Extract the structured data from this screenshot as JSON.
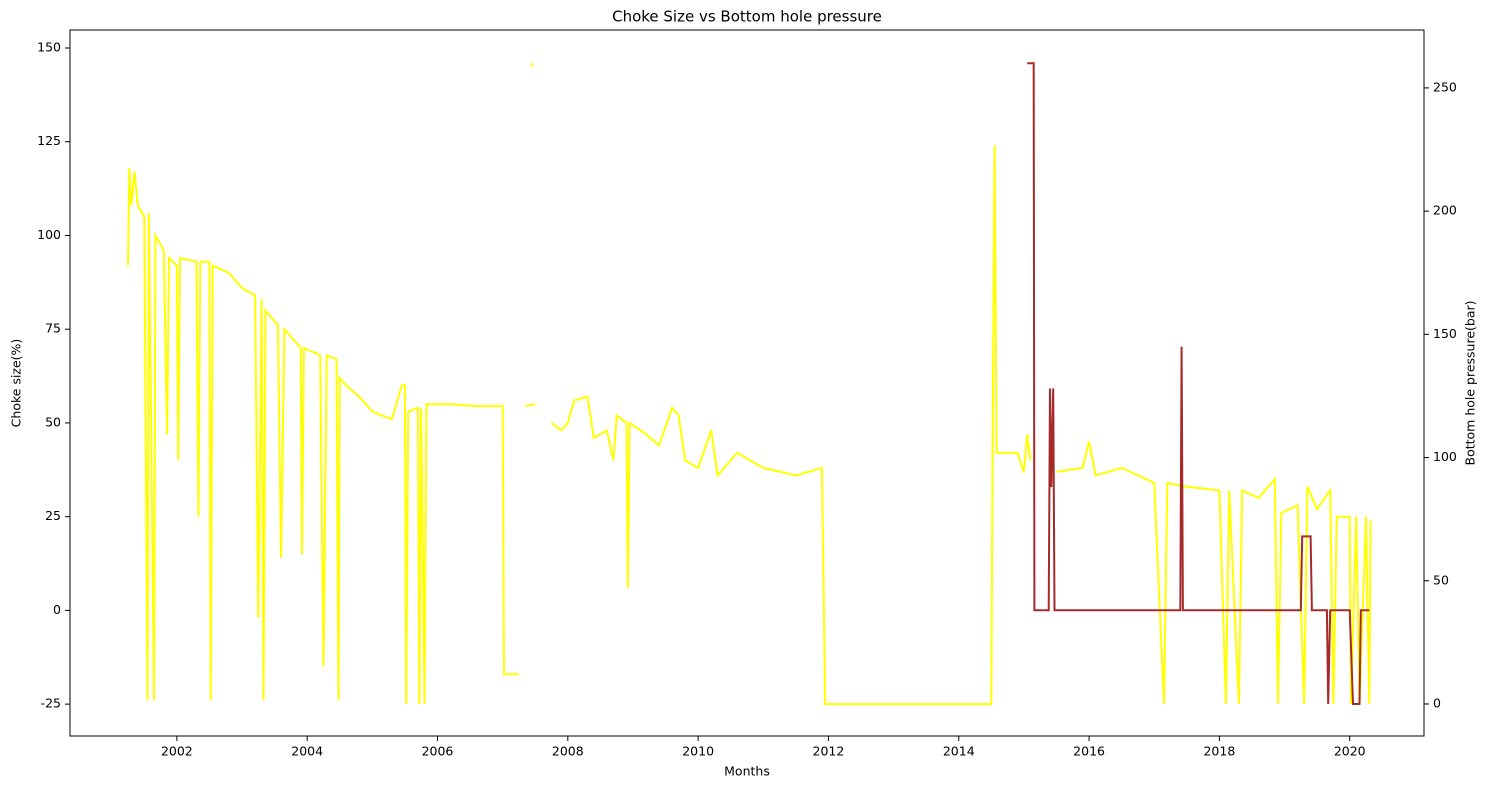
{
  "chart_data": {
    "type": "line",
    "title": "Choke Size vs Bottom hole pressure",
    "x_label": "Months",
    "y_label": "Choke size(%)",
    "y2_label": "Bottom hole pressure(bar)",
    "xlim": [
      2000.36,
      2021.14
    ],
    "xticks": [
      2002,
      2004,
      2006,
      2008,
      2010,
      2012,
      2014,
      2016,
      2018,
      2020
    ],
    "ylim": [
      -33.5,
      154.8
    ],
    "yticks": [
      -25,
      0,
      25,
      50,
      75,
      100,
      125,
      150
    ],
    "y2lim": [
      -13,
      273.5
    ],
    "y2ticks": [
      0,
      50,
      100,
      150,
      200,
      250
    ],
    "grid": false,
    "series": [
      {
        "color": "#ffff00",
        "x": [
          2001.25,
          2001.27,
          2001.3,
          2001.35,
          2001.4,
          2001.5,
          2001.55,
          2001.57,
          2001.65,
          2001.67,
          2001.8,
          2001.85,
          2001.88,
          2002.0,
          2002.02,
          2002.05,
          2002.3,
          2002.33,
          2002.36,
          2002.5,
          2002.52,
          2002.55,
          2002.8,
          2003.0,
          2003.2,
          2003.25,
          2003.3,
          2003.33,
          2003.36,
          2003.55,
          2003.6,
          2003.65,
          2003.9,
          2003.92,
          2003.95,
          2004.2,
          2004.25,
          2004.3,
          2004.45,
          2004.48,
          2004.5,
          2004.6,
          2004.8,
          2005.0,
          2005.3,
          2005.45,
          2005.5,
          2005.52,
          2005.55,
          2005.7,
          2005.72,
          2005.75,
          2005.8,
          2005.83,
          2005.9,
          2006.2,
          2006.6,
          2007.0,
          2007.02,
          2007.25,
          null,
          2007.35,
          2007.5,
          null,
          2007.44,
          2007.46,
          null,
          2007.75,
          2007.9,
          2008.0,
          2008.1,
          2008.3,
          2008.4,
          2008.6,
          2008.7,
          2008.75,
          2008.9,
          2008.92,
          2008.95,
          2009.2,
          2009.4,
          2009.6,
          2009.7,
          2009.8,
          2010.0,
          2010.2,
          2010.3,
          2010.6,
          2011.0,
          2011.5,
          2011.9,
          2011.95,
          2013.0,
          2014.5,
          2014.52,
          2014.55,
          2014.58,
          2014.9,
          2015.0,
          2015.05,
          2015.1,
          null,
          2015.5,
          2015.9,
          2016.0,
          2016.1,
          2016.5,
          2017.0,
          2017.15,
          2017.2,
          2017.5,
          2018.0,
          2018.1,
          2018.15,
          2018.3,
          2018.35,
          2018.6,
          2018.85,
          2018.9,
          2018.95,
          2019.2,
          2019.3,
          2019.35,
          2019.5,
          2019.7,
          2019.75,
          2019.8,
          2020.0,
          2020.02,
          2020.1,
          2020.15,
          2020.25,
          2020.3,
          2020.32
        ],
        "values": [
          92,
          118,
          108,
          117,
          108,
          105,
          -24,
          106,
          -24,
          100,
          96,
          47,
          94,
          92,
          40,
          94,
          93,
          25,
          93,
          93,
          -24,
          92,
          90,
          86,
          84,
          -2,
          83,
          -24,
          80,
          76,
          14,
          75,
          70,
          15,
          70,
          68,
          -15,
          68,
          67,
          -24,
          62,
          60,
          57,
          53,
          51,
          60,
          60,
          -25,
          53,
          54,
          -25,
          54,
          -25,
          55,
          55,
          55,
          54.5,
          54.5,
          -17,
          -17,
          null,
          54.5,
          55,
          null,
          145,
          146,
          null,
          50,
          48,
          50,
          56,
          57,
          46,
          48,
          40,
          52,
          50,
          6,
          50,
          47,
          44,
          54,
          52,
          40,
          38,
          48,
          36,
          42,
          38,
          36,
          38,
          -25,
          -25,
          -25,
          43,
          124,
          42,
          42,
          37,
          47,
          40,
          null,
          37,
          38,
          45,
          36,
          38,
          34,
          -25,
          34,
          33,
          32,
          -25,
          32,
          -25,
          32,
          30,
          35,
          -25,
          26,
          28,
          -25,
          33,
          27,
          32,
          -25,
          25,
          25,
          -25,
          25,
          -25,
          25,
          -25,
          24
        ]
      },
      {
        "color": "#a52a2a",
        "axis": "y2",
        "x": [
          2015.05,
          2015.15,
          2015.16,
          2015.38,
          2015.4,
          2015.42,
          2015.45,
          2015.47,
          2017.4,
          2017.42,
          2017.44,
          2019.25,
          2019.27,
          2019.4,
          2019.42,
          2019.65,
          2019.67,
          2019.7,
          2020.0,
          2020.05,
          2020.15,
          2020.17,
          2020.3
        ],
        "values": [
          260,
          260,
          38,
          38,
          128,
          88,
          128,
          38,
          38,
          145,
          38,
          38,
          68,
          68,
          38,
          38,
          0,
          38,
          38,
          0,
          0,
          38,
          38
        ]
      }
    ]
  }
}
